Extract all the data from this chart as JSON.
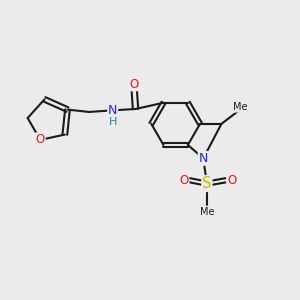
{
  "background_color": "#ebebeb",
  "bond_color": "#1a1a1a",
  "atom_colors": {
    "O": "#ee1111",
    "N": "#2222dd",
    "S": "#ccbb00",
    "H": "#228888",
    "C": "#1a1a1a"
  },
  "font_size_atoms": 8.5,
  "figsize": [
    3.0,
    3.0
  ],
  "dpi": 100
}
